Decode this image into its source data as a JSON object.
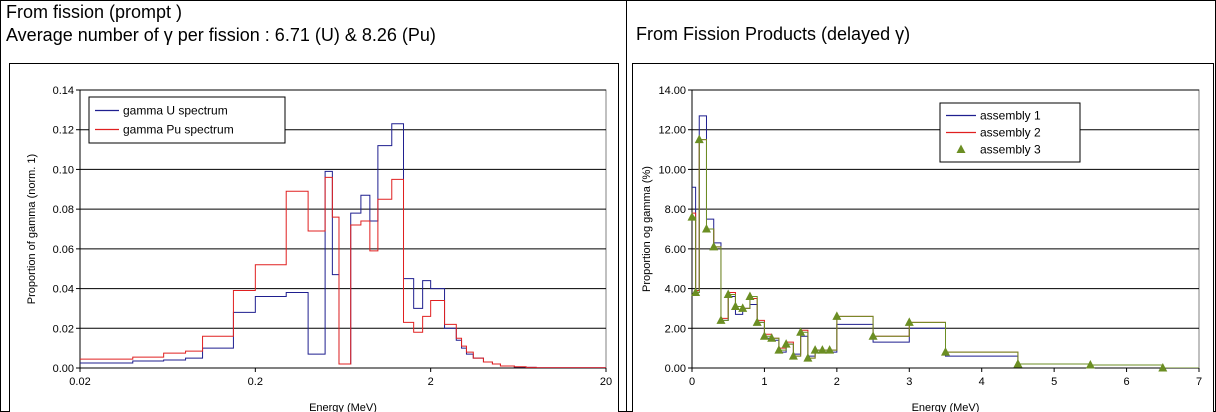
{
  "panel_left": {
    "heading1": "From fission (prompt )",
    "heading2": "Average number of γ per fission : 6.71 (U) & 8.26 (Pu)"
  },
  "panel_right": {
    "heading1": "From Fission Products (delayed γ)"
  },
  "colors": {
    "blue": "#1f1f8f",
    "red": "#e02020",
    "green": "#6b8e23"
  },
  "chart_data": [
    {
      "type": "line",
      "step": true,
      "xscale": "log",
      "xlabel": "Energy (MeV)",
      "ylabel": "Proportion  of gamma (norm. 1)",
      "xlim": [
        0.02,
        20
      ],
      "ylim": [
        0,
        0.14
      ],
      "xticks": [
        0.02,
        0.2,
        2,
        20
      ],
      "xtick_labels": [
        "0.02",
        "0.2",
        "2",
        "20"
      ],
      "yticks": [
        0,
        0.02,
        0.04,
        0.06,
        0.08,
        0.1,
        0.12,
        0.14
      ],
      "ytick_labels": [
        "0.00",
        "0.02",
        "0.04",
        "0.06",
        "0.08",
        "0.10",
        "0.12",
        "0.14"
      ],
      "grid": "horizontal",
      "legend": "top-left",
      "x": [
        0.02,
        0.04,
        0.06,
        0.08,
        0.1,
        0.15,
        0.2,
        0.3,
        0.4,
        0.5,
        0.55,
        0.6,
        0.7,
        0.8,
        0.9,
        1.0,
        1.2,
        1.4,
        1.6,
        1.8,
        2.0,
        2.4,
        2.8,
        3.0,
        3.2,
        3.5,
        4.0,
        4.5,
        5,
        6,
        7,
        8,
        10
      ],
      "series": [
        {
          "name": "gamma U spectrum",
          "color": "#1f1f8f",
          "values": [
            0.0025,
            0.0035,
            0.004,
            0.005,
            0.01,
            0.028,
            0.036,
            0.038,
            0.007,
            0.099,
            0.047,
            0.002,
            0.078,
            0.087,
            0.074,
            0.112,
            0.123,
            0.045,
            0.03,
            0.044,
            0.04,
            0.02,
            0.014,
            0.01,
            0.007,
            0.005,
            0.003,
            0.002,
            0.001,
            0.0005,
            0.0003,
            0.0001,
            0.0001
          ]
        },
        {
          "name": "gamma Pu spectrum",
          "color": "#e02020",
          "values": [
            0.0045,
            0.0055,
            0.0075,
            0.0085,
            0.016,
            0.039,
            0.052,
            0.089,
            0.069,
            0.096,
            0.076,
            0.002,
            0.072,
            0.074,
            0.059,
            0.085,
            0.095,
            0.023,
            0.018,
            0.026,
            0.034,
            0.022,
            0.015,
            0.011,
            0.008,
            0.005,
            0.003,
            0.002,
            0.001,
            0.0006,
            0.0003,
            0.0001,
            0.0001
          ]
        }
      ]
    },
    {
      "type": "line",
      "step": true,
      "xlabel": "Energy (MeV)",
      "ylabel": "Proportion og gamma (%)",
      "xlim": [
        0,
        7
      ],
      "ylim": [
        0,
        14
      ],
      "xticks": [
        0,
        1,
        2,
        3,
        4,
        5,
        6,
        7
      ],
      "xtick_labels": [
        "0",
        "1",
        "2",
        "3",
        "4",
        "5",
        "6",
        "7"
      ],
      "yticks": [
        0,
        2,
        4,
        6,
        8,
        10,
        12,
        14
      ],
      "ytick_labels": [
        "0.00",
        "2.00",
        "4.00",
        "6.00",
        "8.00",
        "10.00",
        "12.00",
        "14.00"
      ],
      "grid": "horizontal",
      "legend": "top-right",
      "x": [
        0,
        0.05,
        0.1,
        0.2,
        0.3,
        0.4,
        0.5,
        0.6,
        0.7,
        0.8,
        0.9,
        1.0,
        1.1,
        1.2,
        1.3,
        1.4,
        1.5,
        1.6,
        1.7,
        1.8,
        1.9,
        2.0,
        2.5,
        3.0,
        3.5,
        4.5,
        5.5,
        6.5
      ],
      "series": [
        {
          "name": "assembly 1",
          "color": "#1f1f8f",
          "values": [
            9.1,
            3.8,
            12.7,
            7.5,
            6.3,
            2.4,
            3.6,
            2.7,
            3.0,
            3.2,
            2.3,
            1.5,
            1.4,
            0.8,
            1.2,
            0.7,
            1.6,
            0.6,
            0.9,
            0.8,
            0.8,
            2.2,
            1.3,
            2.0,
            0.6,
            0.2,
            0.15,
            0.0
          ]
        },
        {
          "name": "assembly 2",
          "color": "#e02020",
          "values": [
            7.8,
            3.9,
            11.5,
            7.0,
            6.1,
            2.5,
            3.8,
            3.1,
            3.0,
            3.5,
            2.4,
            1.7,
            1.5,
            1.0,
            1.3,
            0.6,
            1.9,
            0.5,
            0.9,
            0.9,
            0.9,
            2.6,
            1.6,
            2.3,
            0.8,
            0.2,
            0.15,
            0.0
          ]
        },
        {
          "name": "assembly 3",
          "color": "#6b8e23",
          "marker": "triangle",
          "values": [
            7.6,
            3.8,
            11.5,
            7.0,
            6.1,
            2.4,
            3.7,
            3.1,
            3.0,
            3.6,
            2.3,
            1.6,
            1.5,
            0.9,
            1.2,
            0.6,
            1.8,
            0.5,
            0.9,
            0.9,
            0.9,
            2.6,
            1.6,
            2.3,
            0.8,
            0.2,
            0.15,
            0.0
          ]
        }
      ]
    }
  ]
}
